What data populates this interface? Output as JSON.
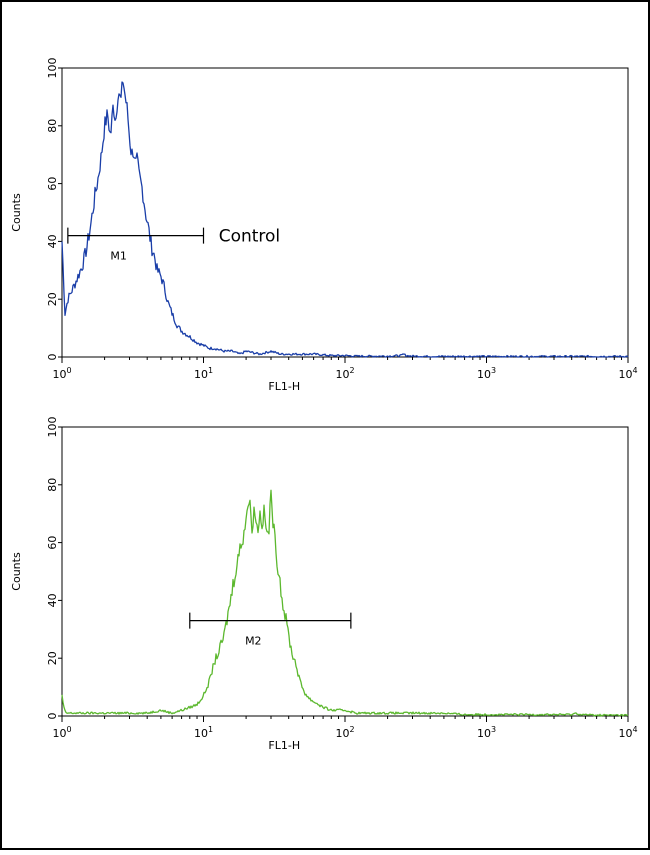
{
  "chart_data": [
    {
      "type": "line",
      "xscale": "log",
      "xlim": [
        1,
        10000
      ],
      "ylim": [
        0,
        100
      ],
      "xlabel": "FL1-H",
      "ylabel": "Counts",
      "x_ticks": [
        {
          "base": "10",
          "exp": "0",
          "value": 1
        },
        {
          "base": "10",
          "exp": "1",
          "value": 10
        },
        {
          "base": "10",
          "exp": "2",
          "value": 100
        },
        {
          "base": "10",
          "exp": "3",
          "value": 1000
        },
        {
          "base": "10",
          "exp": "4",
          "value": 10000
        }
      ],
      "y_ticks": [
        "0",
        "20",
        "40",
        "60",
        "80",
        "100"
      ],
      "series": [
        {
          "color": "#1a3ea8",
          "x": [
            1.0,
            1.05,
            1.1,
            1.2,
            1.3,
            1.4,
            1.5,
            1.6,
            1.7,
            1.8,
            1.9,
            2.0,
            2.1,
            2.2,
            2.3,
            2.4,
            2.5,
            2.6,
            2.7,
            2.8,
            2.9,
            3.0,
            3.1,
            3.2,
            3.3,
            3.4,
            3.5,
            3.7,
            3.9,
            4.1,
            4.3,
            4.5,
            4.7,
            5.0,
            5.3,
            5.6,
            6.0,
            6.5,
            7.0,
            7.5,
            8.0,
            9.0,
            10,
            11,
            12,
            14,
            16,
            18,
            20,
            25,
            30,
            35,
            40,
            50,
            60,
            80,
            100,
            120,
            150,
            200,
            250,
            260,
            270,
            300,
            400,
            600,
            1000,
            2000,
            4000,
            10000
          ],
          "y": [
            40,
            15,
            20,
            24,
            28,
            32,
            38,
            46,
            55,
            62,
            70,
            80,
            84,
            76,
            87,
            82,
            93,
            88,
            96,
            90,
            85,
            76,
            70,
            72,
            66,
            68,
            63,
            58,
            50,
            44,
            38,
            35,
            30,
            28,
            24,
            19,
            15,
            11,
            9,
            8,
            7,
            5,
            4,
            3,
            3,
            2,
            2,
            1,
            2,
            1,
            2,
            1,
            1,
            1,
            1,
            0.5,
            0.5,
            0.3,
            0.3,
            0.3,
            0.5,
            1,
            0.5,
            0.3,
            0.2,
            0.2,
            0.2,
            0.2,
            0.2,
            0.2
          ]
        }
      ],
      "markers": [
        {
          "label": "M1",
          "x_start": 1.1,
          "x_end": 10,
          "y": 42
        }
      ],
      "annotations": [
        {
          "text": "Control",
          "x": 12,
          "y": 42
        }
      ]
    },
    {
      "type": "line",
      "xscale": "log",
      "xlim": [
        1,
        10000
      ],
      "ylim": [
        0,
        100
      ],
      "xlabel": "FL1-H",
      "ylabel": "Counts",
      "x_ticks": [
        {
          "base": "10",
          "exp": "0",
          "value": 1
        },
        {
          "base": "10",
          "exp": "1",
          "value": 10
        },
        {
          "base": "10",
          "exp": "2",
          "value": 100
        },
        {
          "base": "10",
          "exp": "3",
          "value": 1000
        },
        {
          "base": "10",
          "exp": "4",
          "value": 10000
        }
      ],
      "y_ticks": [
        "0",
        "20",
        "40",
        "60",
        "80",
        "100"
      ],
      "series": [
        {
          "color": "#5cb82e",
          "x": [
            1.0,
            1.03,
            1.06,
            1.2,
            1.5,
            2.0,
            3.0,
            4.0,
            5.0,
            6.0,
            7.0,
            8.0,
            9.0,
            10,
            11,
            12,
            13,
            14,
            15,
            16,
            17,
            18,
            19,
            20,
            21,
            22,
            23,
            24,
            25,
            26,
            27,
            28,
            29,
            30,
            31,
            32,
            33,
            34,
            35,
            36,
            38,
            40,
            42,
            45,
            48,
            52,
            56,
            60,
            65,
            70,
            80,
            90,
            100,
            120,
            150,
            200,
            300,
            500,
            700,
            1000,
            2000,
            3000,
            4000,
            4300,
            4600,
            6000,
            10000
          ],
          "y": [
            7,
            3,
            1,
            1,
            1,
            1,
            1,
            1,
            2,
            1,
            2,
            3,
            4,
            7,
            12,
            19,
            23,
            28,
            36,
            44,
            52,
            57,
            62,
            69,
            75,
            66,
            72,
            64,
            70,
            67,
            71,
            62,
            65,
            76,
            68,
            60,
            55,
            50,
            46,
            40,
            34,
            28,
            22,
            18,
            12,
            8,
            6,
            5,
            4,
            3,
            2,
            2,
            2,
            1,
            1,
            1,
            1,
            1,
            0.5,
            0.5,
            0.5,
            0.5,
            0.5,
            1,
            0.5,
            0.3,
            0.3
          ]
        }
      ],
      "markers": [
        {
          "label": "M2",
          "x_start": 8,
          "x_end": 110,
          "y": 33
        }
      ]
    }
  ]
}
